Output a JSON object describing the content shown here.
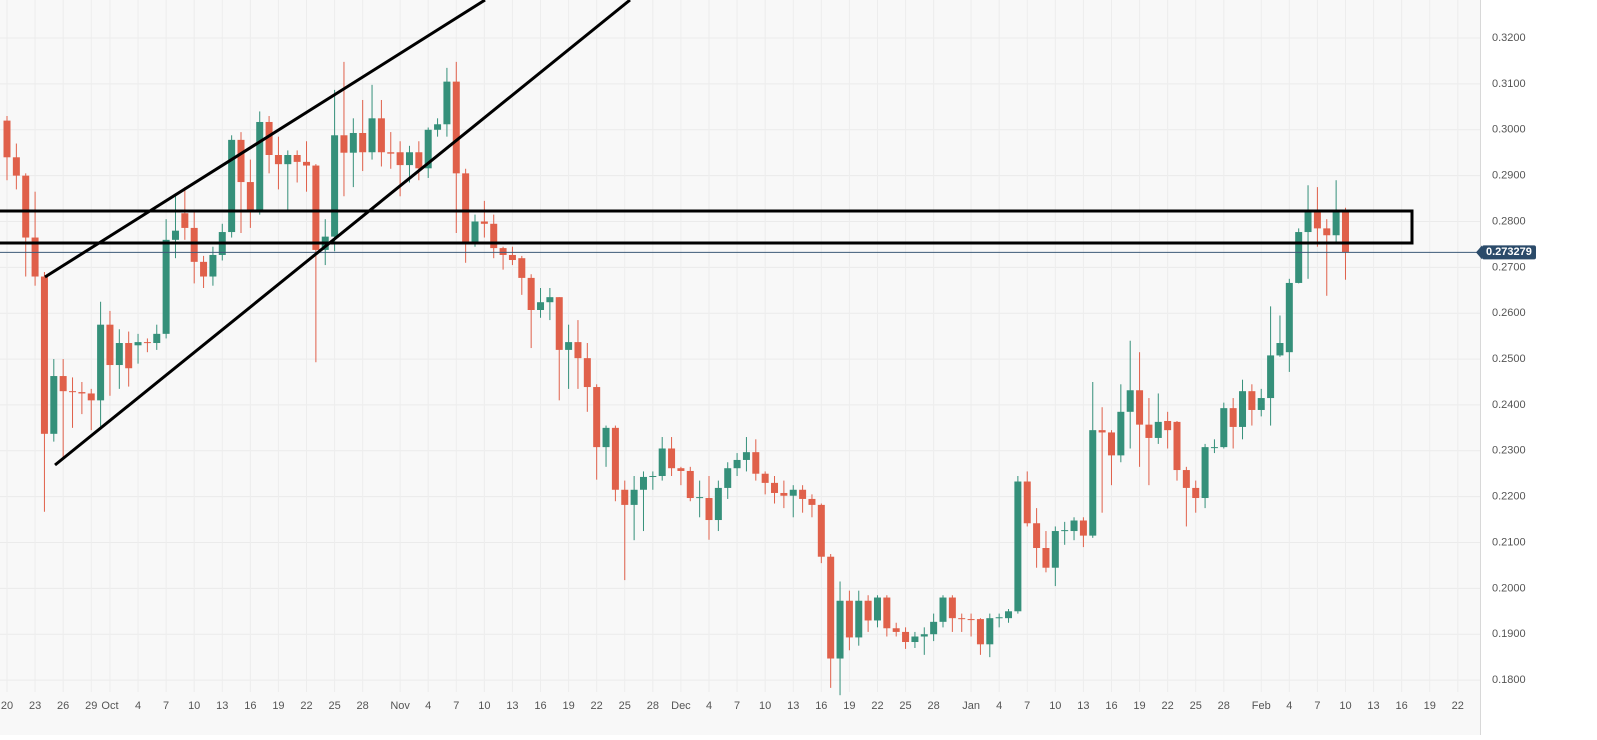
{
  "chart_data": {
    "type": "candlestick",
    "categories": [
      "20",
      null,
      null,
      "23",
      null,
      null,
      "26",
      null,
      null,
      "29",
      null,
      "Oct",
      null,
      null,
      "4",
      null,
      null,
      "7",
      null,
      null,
      "10",
      null,
      null,
      "13",
      null,
      null,
      "16",
      null,
      null,
      "19",
      null,
      null,
      "22",
      null,
      null,
      "25",
      null,
      null,
      "28",
      null,
      null,
      null,
      "Nov",
      null,
      null,
      "4",
      null,
      null,
      "7",
      null,
      null,
      "10",
      null,
      null,
      "13",
      null,
      null,
      "16",
      null,
      null,
      "19",
      null,
      null,
      "22",
      null,
      null,
      "25",
      null,
      null,
      "28",
      null,
      null,
      "Dec",
      null,
      null,
      "4",
      null,
      null,
      "7",
      null,
      null,
      "10",
      null,
      null,
      "13",
      null,
      null,
      "16",
      null,
      null,
      "19",
      null,
      null,
      "22",
      null,
      null,
      "25",
      null,
      null,
      "28",
      null,
      null,
      null,
      "Jan",
      null,
      null,
      "4",
      null,
      null,
      "7",
      null,
      null,
      "10",
      null,
      null,
      "13",
      null,
      null,
      "16",
      null,
      null,
      "19",
      null,
      null,
      "22",
      null,
      null,
      "25",
      null,
      null,
      "28",
      null,
      null,
      null,
      "Feb",
      null,
      null,
      "4",
      null,
      null,
      "7",
      null,
      null,
      "10",
      null,
      null,
      "13",
      null,
      null,
      "16",
      null,
      null,
      "19",
      null,
      null,
      "22"
    ],
    "open": [
      0.302,
      0.294,
      0.29,
      0.2765,
      0.268,
      0.2337,
      0.2463,
      0.243,
      0.2428,
      0.2425,
      0.241,
      0.2575,
      0.2487,
      0.2535,
      0.253,
      0.2537,
      0.2535,
      0.2555,
      0.276,
      0.2818,
      0.2786,
      0.2712,
      0.268,
      0.2727,
      0.2777,
      0.2978,
      0.2886,
      0.2826,
      0.3017,
      0.2945,
      0.2925,
      0.2945,
      0.293,
      0.2922,
      0.2738,
      0.2767,
      0.2988,
      0.295,
      0.2993,
      0.2951,
      0.3025,
      0.2951,
      0.2951,
      0.2923,
      0.2951,
      0.2916,
      0.3,
      0.3012,
      0.3105,
      0.2905,
      0.2753,
      0.28,
      0.2795,
      0.2742,
      0.2727,
      0.272,
      0.2677,
      0.2607,
      0.2624,
      0.2635,
      0.252,
      0.2537,
      0.2502,
      0.2439,
      0.2308,
      0.235,
      0.2215,
      0.2182,
      0.2215,
      0.2243,
      0.2245,
      0.2305,
      0.2262,
      0.2256,
      0.2197,
      0.2197,
      0.2149,
      0.2219,
      0.2262,
      0.228,
      0.2297,
      0.225,
      0.223,
      0.2208,
      0.2202,
      0.2215,
      0.2195,
      0.2182,
      0.2069,
      0.1847,
      0.1973,
      0.1893,
      0.1973,
      0.193,
      0.198,
      0.1913,
      0.1905,
      0.1883,
      0.1895,
      0.19,
      0.1927,
      0.198,
      0.1935,
      0.1933,
      0.1933,
      0.1878,
      0.1935,
      0.1935,
      0.195,
      0.2233,
      0.2142,
      0.2088,
      0.2045,
      0.2125,
      0.2125,
      0.2148,
      0.2115,
      0.2345,
      0.234,
      0.229,
      0.2385,
      0.2432,
      0.2357,
      0.2328,
      0.2365,
      0.2363,
      0.2258,
      0.2219,
      0.2197,
      0.2306,
      0.2308,
      0.2393,
      0.2352,
      0.243,
      0.2389,
      0.2415,
      0.2508,
      0.2515,
      0.2666,
      0.2777,
      0.2825,
      0.2785,
      0.277,
      0.2825,
      null,
      null,
      null,
      null,
      null,
      null,
      null,
      null,
      null,
      null,
      null,
      null
    ],
    "high": [
      0.303,
      0.297,
      0.2905,
      0.2865,
      0.269,
      0.25,
      0.25,
      0.246,
      0.245,
      0.2435,
      0.2625,
      0.2605,
      0.2565,
      0.256,
      0.2555,
      0.2545,
      0.2575,
      0.2805,
      0.2855,
      0.2875,
      0.282,
      0.2725,
      0.2745,
      0.2795,
      0.2988,
      0.2995,
      0.2935,
      0.304,
      0.303,
      0.2985,
      0.2955,
      0.2955,
      0.2975,
      0.2925,
      0.2805,
      0.3087,
      0.3148,
      0.3025,
      0.3065,
      0.3098,
      0.3065,
      0.2995,
      0.2975,
      0.2965,
      0.2975,
      0.3005,
      0.3025,
      0.3135,
      0.3148,
      0.2915,
      0.2815,
      0.2845,
      0.2815,
      0.2745,
      0.2745,
      0.2725,
      0.2685,
      0.2655,
      0.2655,
      0.2635,
      0.2575,
      0.2585,
      0.2535,
      0.2445,
      0.2355,
      0.2355,
      0.2235,
      0.2245,
      0.2255,
      0.2255,
      0.233,
      0.233,
      0.2265,
      0.2265,
      0.2235,
      0.2245,
      0.2235,
      0.2275,
      0.2295,
      0.233,
      0.2325,
      0.2255,
      0.2245,
      0.2235,
      0.2225,
      0.2225,
      0.2205,
      0.2185,
      0.2075,
      0.2015,
      0.1995,
      0.1995,
      0.1985,
      0.1985,
      0.1985,
      0.1925,
      0.1915,
      0.1905,
      0.1915,
      0.1945,
      0.1985,
      0.1985,
      0.1945,
      0.1945,
      0.1935,
      0.1945,
      0.1945,
      0.1955,
      0.2245,
      0.2255,
      0.2175,
      0.2125,
      0.2135,
      0.2145,
      0.2155,
      0.2155,
      0.245,
      0.2395,
      0.2345,
      0.2445,
      0.254,
      0.2515,
      0.2415,
      0.2425,
      0.2385,
      0.2365,
      0.2265,
      0.2235,
      0.2315,
      0.2325,
      0.2405,
      0.2415,
      0.2455,
      0.2445,
      0.2435,
      0.2615,
      0.2595,
      0.2675,
      0.2785,
      0.2879,
      0.2875,
      0.2805,
      0.289,
      0.283,
      null,
      null,
      null,
      null,
      null,
      null,
      null,
      null,
      null,
      null,
      null,
      null
    ],
    "low": [
      0.289,
      0.287,
      0.268,
      0.266,
      0.2167,
      0.232,
      0.228,
      0.235,
      0.238,
      0.2345,
      0.235,
      0.242,
      0.2435,
      0.244,
      0.249,
      0.2515,
      0.252,
      0.2545,
      0.272,
      0.276,
      0.2665,
      0.2655,
      0.266,
      0.2715,
      0.2765,
      0.2775,
      0.2786,
      0.2815,
      0.2905,
      0.287,
      0.282,
      0.2885,
      0.2865,
      0.2493,
      0.2705,
      0.2735,
      0.2855,
      0.2875,
      0.291,
      0.2935,
      0.292,
      0.2915,
      0.2855,
      0.2885,
      0.289,
      0.2895,
      0.2985,
      0.2985,
      0.2775,
      0.271,
      0.2745,
      0.2765,
      0.272,
      0.2695,
      0.2705,
      0.264,
      0.2524,
      0.259,
      0.2585,
      0.241,
      0.2435,
      0.2435,
      0.2385,
      0.2237,
      0.2265,
      0.219,
      0.2018,
      0.2105,
      0.2125,
      0.2215,
      0.2235,
      0.2245,
      0.2225,
      0.219,
      0.2155,
      0.2106,
      0.2125,
      0.2195,
      0.2245,
      0.2255,
      0.2235,
      0.2205,
      0.2185,
      0.2175,
      0.2155,
      0.2165,
      0.2155,
      0.2055,
      0.1783,
      0.1767,
      0.1865,
      0.1875,
      0.1905,
      0.1915,
      0.1895,
      0.1895,
      0.1868,
      0.187,
      0.1855,
      0.1885,
      0.1915,
      0.1905,
      0.1905,
      0.1895,
      0.1855,
      0.185,
      0.1915,
      0.1925,
      0.1945,
      0.2135,
      0.2045,
      0.2035,
      0.2005,
      0.2095,
      0.2105,
      0.209,
      0.211,
      0.2165,
      0.2225,
      0.2275,
      0.2305,
      0.2265,
      0.2225,
      0.2315,
      0.2305,
      0.2235,
      0.2135,
      0.2165,
      0.2175,
      0.2295,
      0.2305,
      0.2305,
      0.2325,
      0.2355,
      0.2375,
      0.2355,
      0.2505,
      0.2472,
      0.2665,
      0.2675,
      0.2745,
      0.2638,
      0.2755,
      0.2673,
      null,
      null,
      null,
      null,
      null,
      null,
      null,
      null,
      null,
      null,
      null,
      null
    ],
    "close": [
      0.294,
      0.29,
      0.2765,
      0.268,
      0.2337,
      0.2463,
      0.243,
      0.2428,
      0.2425,
      0.241,
      0.2575,
      0.2487,
      0.2535,
      0.248,
      0.2537,
      0.2535,
      0.2555,
      0.276,
      0.278,
      0.2786,
      0.2712,
      0.268,
      0.2727,
      0.2777,
      0.2978,
      0.2886,
      0.2826,
      0.3017,
      0.2945,
      0.2925,
      0.2945,
      0.293,
      0.2922,
      0.2738,
      0.2767,
      0.2988,
      0.295,
      0.2993,
      0.2951,
      0.3025,
      0.2951,
      0.2948,
      0.2923,
      0.2951,
      0.2916,
      0.3,
      0.3012,
      0.3105,
      0.2905,
      0.2753,
      0.28,
      0.2795,
      0.2742,
      0.2727,
      0.2716,
      0.2677,
      0.2607,
      0.2624,
      0.2635,
      0.252,
      0.2537,
      0.2502,
      0.2439,
      0.2308,
      0.235,
      0.2215,
      0.2182,
      0.2215,
      0.2243,
      0.2245,
      0.2305,
      0.2262,
      0.2256,
      0.2197,
      0.2199,
      0.2149,
      0.2219,
      0.2262,
      0.228,
      0.2297,
      0.225,
      0.223,
      0.2208,
      0.2202,
      0.2215,
      0.2195,
      0.2182,
      0.2069,
      0.1847,
      0.1973,
      0.1893,
      0.1973,
      0.193,
      0.198,
      0.1913,
      0.1905,
      0.1883,
      0.1895,
      0.19,
      0.1927,
      0.198,
      0.1935,
      0.1933,
      0.1931,
      0.1878,
      0.1935,
      0.1937,
      0.195,
      0.2233,
      0.2142,
      0.2088,
      0.2045,
      0.2125,
      0.2127,
      0.2148,
      0.2115,
      0.2345,
      0.234,
      0.229,
      0.2385,
      0.2432,
      0.2357,
      0.2328,
      0.2363,
      0.2345,
      0.2258,
      0.2219,
      0.2197,
      0.2308,
      0.2308,
      0.2393,
      0.2352,
      0.243,
      0.2389,
      0.2415,
      0.2508,
      0.2535,
      0.2666,
      0.2777,
      0.2825,
      0.2785,
      0.277,
      0.2825,
      0.2733,
      null,
      null,
      null,
      null,
      null,
      null,
      null,
      null,
      null,
      null,
      null,
      null
    ],
    "up_color": "#35907a",
    "down_color": "#e0604a",
    "ylim": [
      0.1774,
      0.3283
    ],
    "yticks": [
      {
        "value": 0.18,
        "label": "0.1800"
      },
      {
        "value": 0.19,
        "label": "0.1900"
      },
      {
        "value": 0.2,
        "label": "0.2000"
      },
      {
        "value": 0.21,
        "label": "0.2100"
      },
      {
        "value": 0.22,
        "label": "0.2200"
      },
      {
        "value": 0.23,
        "label": "0.2300"
      },
      {
        "value": 0.24,
        "label": "0.2400"
      },
      {
        "value": 0.25,
        "label": "0.2500"
      },
      {
        "value": 0.26,
        "label": "0.2600"
      },
      {
        "value": 0.27,
        "label": "0.2700"
      },
      {
        "value": 0.28,
        "label": "0.2800"
      },
      {
        "value": 0.29,
        "label": "0.2900"
      },
      {
        "value": 0.3,
        "label": "0.3000"
      },
      {
        "value": 0.31,
        "label": "0.3100"
      },
      {
        "value": 0.32,
        "label": "0.3200"
      }
    ],
    "grid": true,
    "last_price": 0.273279
  }
}
